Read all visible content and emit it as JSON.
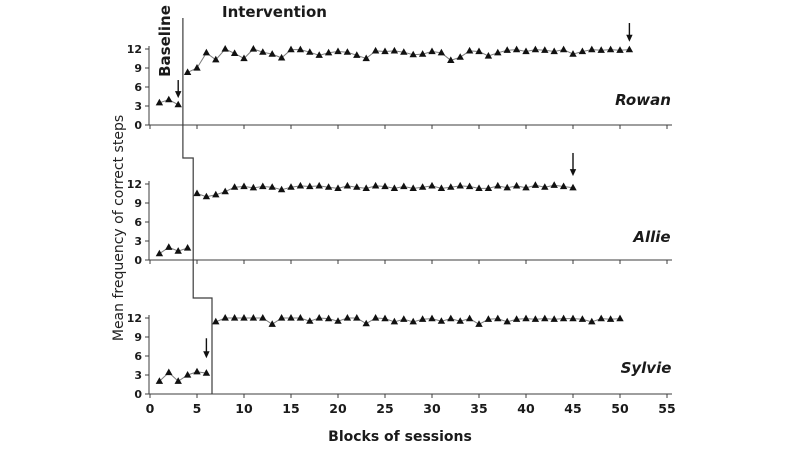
{
  "figure": {
    "phase_labels": {
      "baseline": "Baseline",
      "intervention": "Intervention"
    },
    "x_axis_title": "Blocks of sessions",
    "y_axis_title": "Mean frequency of correct steps",
    "colors": {
      "marker": "#111111",
      "line": "#7d7d7d",
      "axis": "#3c3c3c",
      "text": "#1a1a1a",
      "background": "#ffffff"
    }
  },
  "chart_data": {
    "type": "line",
    "design": "multiple-baseline-across-participants",
    "marker": "filled-triangle-up",
    "grid": false,
    "xlim": [
      0,
      56
    ],
    "ylim": [
      0,
      12
    ],
    "x_ticks": [
      0,
      5,
      10,
      15,
      20,
      25,
      30,
      35,
      40,
      45,
      50,
      55
    ],
    "y_ticks": [
      0,
      3,
      6,
      9,
      12
    ],
    "panels": [
      {
        "label": "Rowan",
        "phase_change_x": 3.5,
        "series": [
          {
            "name": "baseline",
            "points": [
              [
                1,
                3.5
              ],
              [
                2,
                4.0
              ],
              [
                3,
                3.2
              ]
            ]
          },
          {
            "name": "intervention",
            "points": [
              [
                4,
                8.3
              ],
              [
                5,
                9.0
              ],
              [
                6,
                11.4
              ],
              [
                7,
                10.3
              ],
              [
                8,
                12.0
              ],
              [
                9,
                11.3
              ],
              [
                10,
                10.5
              ],
              [
                11,
                12.0
              ],
              [
                12,
                11.5
              ],
              [
                13,
                11.2
              ],
              [
                14,
                10.6
              ],
              [
                15,
                11.9
              ],
              [
                16,
                11.9
              ],
              [
                17,
                11.5
              ],
              [
                18,
                11.0
              ],
              [
                19,
                11.4
              ],
              [
                20,
                11.6
              ],
              [
                21,
                11.5
              ],
              [
                22,
                11.0
              ],
              [
                23,
                10.5
              ],
              [
                24,
                11.7
              ],
              [
                25,
                11.6
              ],
              [
                26,
                11.7
              ],
              [
                27,
                11.5
              ],
              [
                28,
                11.1
              ],
              [
                29,
                11.2
              ],
              [
                30,
                11.6
              ],
              [
                31,
                11.4
              ],
              [
                32,
                10.2
              ],
              [
                33,
                10.7
              ],
              [
                34,
                11.7
              ],
              [
                35,
                11.6
              ],
              [
                36,
                10.9
              ],
              [
                37,
                11.4
              ],
              [
                38,
                11.8
              ],
              [
                39,
                11.9
              ],
              [
                40,
                11.6
              ],
              [
                41,
                11.9
              ],
              [
                42,
                11.8
              ],
              [
                43,
                11.6
              ],
              [
                44,
                11.9
              ],
              [
                45,
                11.2
              ],
              [
                46,
                11.6
              ],
              [
                47,
                11.9
              ],
              [
                48,
                11.8
              ],
              [
                49,
                11.9
              ],
              [
                50,
                11.8
              ],
              [
                51,
                11.9
              ]
            ]
          }
        ],
        "arrows": [
          {
            "x": 3,
            "y_from": 7.1,
            "y_to": 4.4
          },
          {
            "x": 51,
            "y_from": 16.1,
            "y_to": 13.3
          }
        ]
      },
      {
        "label": "Allie",
        "phase_change_x": 4.6,
        "series": [
          {
            "name": "baseline",
            "points": [
              [
                1,
                1.0
              ],
              [
                2,
                2.0
              ],
              [
                3,
                1.4
              ],
              [
                4,
                1.9
              ]
            ]
          },
          {
            "name": "intervention",
            "points": [
              [
                5,
                10.5
              ],
              [
                6,
                10.0
              ],
              [
                7,
                10.3
              ],
              [
                8,
                10.8
              ],
              [
                9,
                11.5
              ],
              [
                10,
                11.6
              ],
              [
                11,
                11.4
              ],
              [
                12,
                11.6
              ],
              [
                13,
                11.5
              ],
              [
                14,
                11.1
              ],
              [
                15,
                11.5
              ],
              [
                16,
                11.7
              ],
              [
                17,
                11.6
              ],
              [
                18,
                11.7
              ],
              [
                19,
                11.5
              ],
              [
                20,
                11.3
              ],
              [
                21,
                11.7
              ],
              [
                22,
                11.5
              ],
              [
                23,
                11.3
              ],
              [
                24,
                11.7
              ],
              [
                25,
                11.6
              ],
              [
                26,
                11.3
              ],
              [
                27,
                11.6
              ],
              [
                28,
                11.3
              ],
              [
                29,
                11.5
              ],
              [
                30,
                11.7
              ],
              [
                31,
                11.3
              ],
              [
                32,
                11.5
              ],
              [
                33,
                11.7
              ],
              [
                34,
                11.6
              ],
              [
                35,
                11.3
              ],
              [
                36,
                11.3
              ],
              [
                37,
                11.7
              ],
              [
                38,
                11.4
              ],
              [
                39,
                11.7
              ],
              [
                40,
                11.4
              ],
              [
                41,
                11.8
              ],
              [
                42,
                11.5
              ],
              [
                43,
                11.8
              ],
              [
                44,
                11.6
              ],
              [
                45,
                11.4
              ]
            ]
          }
        ],
        "arrows": [
          {
            "x": 45,
            "y_from": 16.9,
            "y_to": 13.4
          }
        ]
      },
      {
        "label": "Sylvie",
        "phase_change_x": 6.6,
        "series": [
          {
            "name": "baseline",
            "points": [
              [
                1,
                2.0
              ],
              [
                2,
                3.4
              ],
              [
                3,
                2.0
              ],
              [
                4,
                3.0
              ],
              [
                5,
                3.5
              ],
              [
                6,
                3.3
              ]
            ]
          },
          {
            "name": "intervention",
            "points": [
              [
                7,
                11.4
              ],
              [
                8,
                12.0
              ],
              [
                9,
                12.0
              ],
              [
                10,
                12.0
              ],
              [
                11,
                12.0
              ],
              [
                12,
                12.0
              ],
              [
                13,
                11.0
              ],
              [
                14,
                12.0
              ],
              [
                15,
                12.0
              ],
              [
                16,
                12.0
              ],
              [
                17,
                11.5
              ],
              [
                18,
                12.0
              ],
              [
                19,
                11.9
              ],
              [
                20,
                11.5
              ],
              [
                21,
                12.0
              ],
              [
                22,
                12.0
              ],
              [
                23,
                11.1
              ],
              [
                24,
                12.0
              ],
              [
                25,
                11.9
              ],
              [
                26,
                11.4
              ],
              [
                27,
                11.8
              ],
              [
                28,
                11.4
              ],
              [
                29,
                11.8
              ],
              [
                30,
                11.9
              ],
              [
                31,
                11.5
              ],
              [
                32,
                11.9
              ],
              [
                33,
                11.5
              ],
              [
                34,
                11.9
              ],
              [
                35,
                11.0
              ],
              [
                36,
                11.8
              ],
              [
                37,
                11.9
              ],
              [
                38,
                11.4
              ],
              [
                39,
                11.8
              ],
              [
                40,
                11.9
              ],
              [
                41,
                11.8
              ],
              [
                42,
                11.9
              ],
              [
                43,
                11.8
              ],
              [
                44,
                11.9
              ],
              [
                45,
                11.9
              ],
              [
                46,
                11.8
              ],
              [
                47,
                11.4
              ],
              [
                48,
                11.9
              ],
              [
                49,
                11.8
              ],
              [
                50,
                11.9
              ]
            ]
          }
        ],
        "arrows": [
          {
            "x": 6,
            "y_from": 8.8,
            "y_to": 5.8
          }
        ]
      }
    ]
  }
}
